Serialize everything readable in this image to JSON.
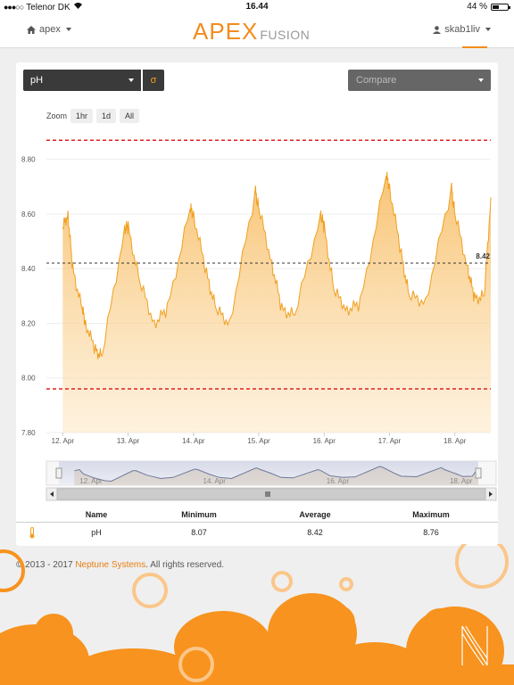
{
  "status": {
    "carrier": "Telenor DK",
    "time": "16.44",
    "battery": "44 %",
    "battery_level": 0.44
  },
  "nav": {
    "left_label": "apex",
    "brand_main": "APEX",
    "brand_sub": "FUSION",
    "user": "skab1liv"
  },
  "controls": {
    "probe": "pH",
    "sigma": "σ",
    "compare": "Compare"
  },
  "zoom": {
    "label": "Zoom",
    "options": [
      "1hr",
      "1d",
      "All"
    ]
  },
  "chart_data": {
    "type": "area",
    "ylim": [
      7.8,
      8.9
    ],
    "y_ticks": [
      "8.80",
      "8.60",
      "8.40",
      "8.20",
      "8.00",
      "7.80"
    ],
    "x_ticks": [
      "12. Apr",
      "13. Apr",
      "14. Apr",
      "15. Apr",
      "16. Apr",
      "17. Apr",
      "18. Apr"
    ],
    "upper_limit": 8.87,
    "lower_limit": 7.96,
    "average": 8.42,
    "average_label": "8.42",
    "x": [
      0,
      0.08,
      0.15,
      0.3,
      0.35,
      0.5,
      0.6,
      0.95,
      1.0,
      1.18,
      1.4,
      1.6,
      1.95,
      2.0,
      2.2,
      2.35,
      2.55,
      2.95,
      3.0,
      3.2,
      3.35,
      3.55,
      3.95,
      4.0,
      4.15,
      4.35,
      4.55,
      4.95,
      5.0,
      5.18,
      5.3,
      5.55,
      5.95,
      6.0,
      6.2,
      6.3,
      6.45,
      6.55
    ],
    "y": [
      8.55,
      8.6,
      8.4,
      8.25,
      8.2,
      8.1,
      8.08,
      8.55,
      8.55,
      8.35,
      8.2,
      8.25,
      8.62,
      8.6,
      8.38,
      8.25,
      8.2,
      8.68,
      8.62,
      8.42,
      8.25,
      8.23,
      8.6,
      8.55,
      8.32,
      8.25,
      8.27,
      8.74,
      8.7,
      8.45,
      8.3,
      8.28,
      8.69,
      8.6,
      8.4,
      8.29,
      8.3,
      8.66
    ],
    "navigator_labels": [
      "12. Apr",
      "14. Apr",
      "16. Apr",
      "18. Apr"
    ]
  },
  "table": {
    "headers": [
      "Name",
      "Minimum",
      "Average",
      "Maximum"
    ],
    "rows": [
      {
        "name": "pH",
        "minimum": "8.07",
        "average": "8.42",
        "maximum": "8.76"
      }
    ]
  },
  "footer": {
    "copyright": "© 2013 - 2017",
    "company": "Neptune Systems",
    "rest": ". All rights reserved."
  },
  "colors": {
    "accent": "#f28c1c",
    "area_top": "#f8c272",
    "limit": "#dd2222"
  }
}
